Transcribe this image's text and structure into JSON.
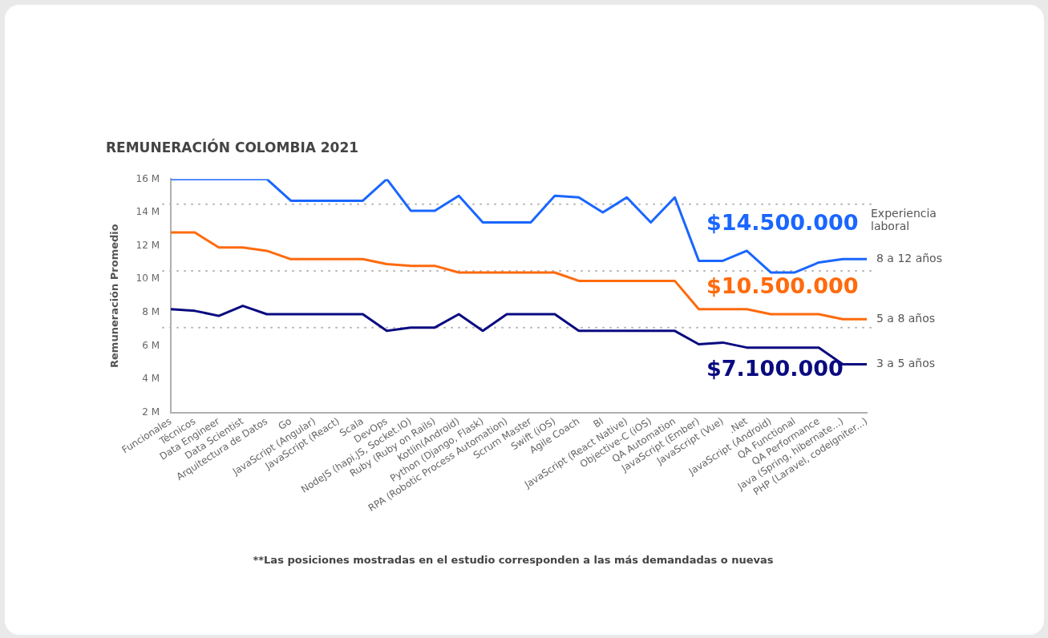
{
  "chart_data": {
    "type": "line",
    "title": "REMUNERACIÓN COLOMBIA 2021",
    "ylabel": "Remuneración Promedio",
    "legend_title": "Experiencia laboral",
    "legend": "right",
    "grid": false,
    "line_style": "solid",
    "marker": "none",
    "categories": [
      "Funcionales",
      "Técnicos",
      "Data Engineer",
      "Data Scientist",
      "Arquitectura de Datos",
      "Go",
      "JavaScript (Angular)",
      "JavaScript (React)",
      "Scala",
      "DevOps",
      "NodeJS (hapi.JS, Socket.IO)",
      "Ruby (Ruby on Rails)",
      "Kotlin(Android)",
      "Python (Django, Flask)",
      "RPA (Robotic Process Automation)",
      "Scrum Master",
      "Swift (iOS)",
      "Agile Coach",
      "BI",
      "JavaScript (React Native)",
      "Objective-C (iOS)",
      "QA Automation",
      "JavaScript (Ember)",
      "JavaScript (Vue)",
      ".Net",
      "JavaScript (Android)",
      "QA Functional",
      "QA Performance",
      "Java (Spring, hibernate...)",
      "PHP (Laravel, codeigniter...)"
    ],
    "ylim": [
      2,
      16
    ],
    "yticks": [
      {
        "value": 2,
        "label": "2 M"
      },
      {
        "value": 4,
        "label": "4 M"
      },
      {
        "value": 6,
        "label": "6 M"
      },
      {
        "value": 8,
        "label": "8 M"
      },
      {
        "value": 10,
        "label": "10 M"
      },
      {
        "value": 12,
        "label": "12 M"
      },
      {
        "value": 14,
        "label": "14 M"
      },
      {
        "value": 16,
        "label": "16 M"
      }
    ],
    "series": [
      {
        "name": "8 a 12 años",
        "color": "#1a66ff",
        "values": [
          16,
          16,
          16,
          16,
          16,
          14.7,
          14.7,
          14.7,
          14.7,
          16,
          14.1,
          14.1,
          15.0,
          13.4,
          13.4,
          13.4,
          15.0,
          14.9,
          14.0,
          14.9,
          13.4,
          14.9,
          11.1,
          11.1,
          11.7,
          10.4,
          10.4,
          11.0,
          11.2,
          11.2
        ]
      },
      {
        "name": "5 a 8 años",
        "color": "#ff6a0d",
        "values": [
          12.8,
          12.8,
          11.9,
          11.9,
          11.7,
          11.2,
          11.2,
          11.2,
          11.2,
          10.9,
          10.8,
          10.8,
          10.4,
          10.4,
          10.4,
          10.4,
          10.4,
          9.9,
          9.9,
          9.9,
          9.9,
          9.9,
          8.2,
          8.2,
          8.2,
          7.9,
          7.9,
          7.9,
          7.6,
          7.6
        ]
      },
      {
        "name": "3 a 5 años",
        "color": "#0a0a80",
        "values": [
          8.2,
          8.1,
          7.8,
          8.4,
          7.9,
          7.9,
          7.9,
          7.9,
          7.9,
          6.9,
          7.1,
          7.1,
          7.9,
          6.9,
          7.9,
          7.9,
          7.9,
          6.9,
          6.9,
          6.9,
          6.9,
          6.9,
          6.1,
          6.2,
          5.9,
          5.9,
          5.9,
          5.9,
          4.9,
          4.9
        ]
      }
    ],
    "ref_lines": [
      {
        "axis": "y",
        "value": 14.5,
        "label": "$14.500.000",
        "color": "#b5b5b5",
        "line_style": "dotted"
      },
      {
        "axis": "y",
        "value": 10.5,
        "label": "$10.500.000",
        "color": "#b5b5b5",
        "line_style": "dotted"
      },
      {
        "axis": "y",
        "value": 7.1,
        "label": "$7.100.000",
        "color": "#b5b5b5",
        "line_style": "dotted"
      }
    ],
    "annotations": [
      "**Las posiciones mostradas en el estudio corresponden a las más demandadas o nuevas"
    ]
  }
}
